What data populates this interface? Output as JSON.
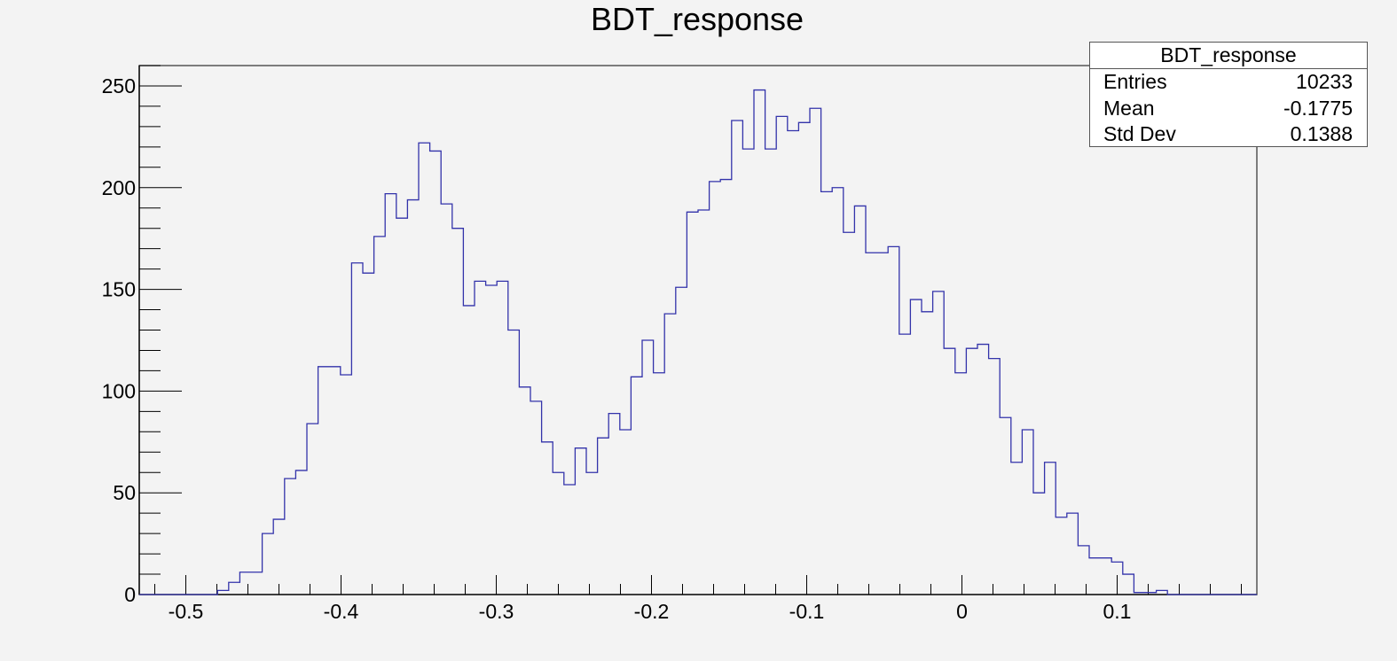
{
  "chart_data": {
    "type": "bar",
    "title": "BDT_response",
    "xlabel": "",
    "ylabel": "",
    "bin_edges_start": -0.53,
    "bin_width": 0.0072,
    "xlim": [
      -0.53,
      0.19
    ],
    "ylim": [
      0,
      260
    ],
    "x_ticks": [
      -0.5,
      -0.4,
      -0.3,
      -0.2,
      -0.1,
      0,
      0.1
    ],
    "x_tick_labels": [
      "-0.5",
      "-0.4",
      "-0.3",
      "-0.2",
      "-0.1",
      "0",
      "0.1"
    ],
    "y_ticks": [
      0,
      50,
      100,
      150,
      200,
      250
    ],
    "y_tick_labels": [
      "0",
      "50",
      "100",
      "150",
      "200",
      "250"
    ],
    "values": [
      0,
      0,
      0,
      0,
      0,
      0,
      0,
      2,
      6,
      11,
      11,
      30,
      37,
      57,
      61,
      84,
      112,
      112,
      108,
      163,
      158,
      176,
      197,
      185,
      194,
      222,
      218,
      192,
      180,
      142,
      154,
      152,
      154,
      130,
      102,
      95,
      75,
      60,
      54,
      72,
      60,
      77,
      89,
      81,
      107,
      125,
      109,
      138,
      151,
      188,
      189,
      203,
      204,
      233,
      219,
      248,
      219,
      235,
      228,
      232,
      239,
      198,
      200,
      178,
      191,
      168,
      168,
      171,
      128,
      145,
      139,
      149,
      121,
      109,
      121,
      123,
      116,
      87,
      65,
      81,
      50,
      65,
      38,
      40,
      24,
      18,
      18,
      16,
      10,
      1,
      1,
      2,
      0,
      0,
      0,
      0,
      0,
      0,
      0,
      0
    ],
    "line_color": "#3333aa"
  },
  "stats": {
    "title": "BDT_response",
    "rows": [
      {
        "label": "Entries",
        "value": "10233"
      },
      {
        "label": "Mean",
        "value": "-0.1775"
      },
      {
        "label": "Std Dev",
        "value": "0.1388"
      }
    ]
  }
}
